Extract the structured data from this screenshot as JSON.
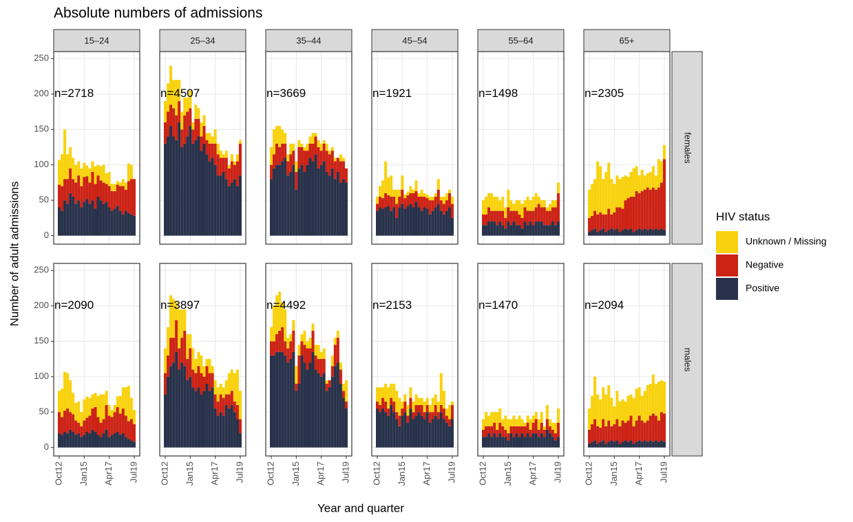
{
  "chart_data": {
    "type": "bar",
    "stacked": true,
    "title": "Absolute numbers of admissions",
    "x_label": "Year and quarter",
    "y_label": "Number of adult admissions",
    "legend_title": "HIV status",
    "series": [
      {
        "name": "Unknown / Missing",
        "color": "#f8d20f"
      },
      {
        "name": "Negative",
        "color": "#cc2316"
      },
      {
        "name": "Positive",
        "color": "#28324a"
      }
    ],
    "facet_cols": [
      "15–24",
      "25–34",
      "35–44",
      "45–54",
      "55–64",
      "65+"
    ],
    "facet_rows": [
      "females",
      "males"
    ],
    "categories": [
      "Oct12",
      null,
      null,
      null,
      null,
      null,
      null,
      null,
      null,
      "Jan15",
      null,
      null,
      null,
      null,
      null,
      null,
      null,
      null,
      "Apr17",
      null,
      null,
      null,
      null,
      null,
      null,
      null,
      null,
      "Jul19"
    ],
    "ylim": [
      -12,
      260
    ],
    "yticks": [
      0,
      50,
      100,
      150,
      200,
      250
    ],
    "grid": true,
    "panels": [
      {
        "annotation": "n=2718",
        "values": [
          [
            35,
            45,
            70,
            35,
            30,
            30,
            25,
            20,
            25,
            20,
            15,
            20,
            15,
            25,
            15,
            20,
            25,
            15,
            20,
            10,
            10,
            5,
            5,
            10,
            10,
            25,
            20,
            0
          ],
          [
            32,
            35,
            30,
            35,
            35,
            25,
            30,
            35,
            30,
            35,
            32,
            30,
            40,
            35,
            30,
            28,
            30,
            25,
            30,
            28,
            25,
            30,
            35,
            40,
            30,
            45,
            50,
            52
          ],
          [
            40,
            35,
            50,
            45,
            60,
            55,
            45,
            50,
            40,
            48,
            52,
            45,
            50,
            38,
            55,
            50,
            45,
            48,
            40,
            35,
            38,
            42,
            35,
            30,
            35,
            32,
            30,
            28
          ]
        ]
      },
      {
        "annotation": "n=4507",
        "values": [
          [
            30,
            40,
            55,
            40,
            50,
            30,
            25,
            25,
            20,
            25,
            10,
            20,
            15,
            20,
            15,
            10,
            15,
            10,
            20,
            15,
            10,
            5,
            10,
            5,
            10,
            5,
            10,
            5
          ],
          [
            30,
            35,
            30,
            40,
            35,
            30,
            25,
            40,
            35,
            25,
            20,
            30,
            25,
            20,
            25,
            20,
            25,
            20,
            30,
            30,
            25,
            20,
            30,
            25,
            30,
            20,
            35,
            45
          ],
          [
            130,
            140,
            155,
            140,
            135,
            160,
            125,
            130,
            140,
            155,
            130,
            135,
            140,
            120,
            130,
            115,
            105,
            110,
            100,
            85,
            85,
            90,
            80,
            70,
            75,
            80,
            70,
            85
          ]
        ]
      },
      {
        "annotation": "n=3669",
        "values": [
          [
            25,
            35,
            25,
            30,
            20,
            15,
            10,
            15,
            10,
            15,
            10,
            5,
            5,
            10,
            10,
            15,
            5,
            10,
            10,
            5,
            10,
            5,
            5,
            5,
            0,
            10,
            5,
            0
          ],
          [
            20,
            20,
            30,
            25,
            25,
            20,
            20,
            25,
            20,
            25,
            30,
            25,
            30,
            20,
            20,
            25,
            25,
            30,
            20,
            25,
            30,
            30,
            25,
            25,
            20,
            30,
            25,
            20
          ],
          [
            80,
            95,
            100,
            100,
            105,
            110,
            85,
            90,
            100,
            65,
            95,
            100,
            90,
            100,
            110,
            105,
            115,
            95,
            100,
            105,
            90,
            85,
            95,
            80,
            90,
            75,
            80,
            75
          ]
        ]
      },
      {
        "annotation": "n=1921",
        "values": [
          [
            10,
            15,
            25,
            45,
            25,
            30,
            10,
            20,
            10,
            20,
            5,
            5,
            10,
            5,
            15,
            5,
            10,
            5,
            5,
            5,
            5,
            5,
            15,
            5,
            10,
            10,
            5,
            10
          ],
          [
            10,
            15,
            15,
            20,
            15,
            20,
            15,
            20,
            15,
            20,
            15,
            15,
            15,
            20,
            15,
            15,
            20,
            15,
            15,
            20,
            15,
            15,
            20,
            15,
            15,
            15,
            20,
            20
          ],
          [
            35,
            40,
            38,
            40,
            42,
            35,
            40,
            25,
            40,
            45,
            38,
            42,
            45,
            40,
            48,
            40,
            35,
            40,
            38,
            30,
            35,
            40,
            45,
            35,
            30,
            35,
            40,
            25
          ]
        ]
      },
      {
        "annotation": "n=1498",
        "values": [
          [
            20,
            25,
            20,
            25,
            20,
            20,
            15,
            20,
            15,
            25,
            15,
            10,
            15,
            20,
            20,
            10,
            20,
            15,
            20,
            20,
            10,
            10,
            10,
            5,
            10,
            10,
            10,
            15
          ],
          [
            15,
            15,
            20,
            15,
            15,
            20,
            15,
            20,
            15,
            20,
            20,
            15,
            20,
            15,
            15,
            20,
            20,
            15,
            20,
            20,
            25,
            20,
            25,
            20,
            20,
            20,
            25,
            40
          ],
          [
            15,
            15,
            20,
            20,
            20,
            15,
            20,
            15,
            10,
            20,
            15,
            20,
            15,
            15,
            10,
            20,
            15,
            20,
            15,
            20,
            20,
            20,
            15,
            15,
            15,
            20,
            15,
            20
          ]
        ]
      },
      {
        "annotation": "n=2305",
        "values": [
          [
            40,
            45,
            45,
            75,
            65,
            50,
            60,
            65,
            50,
            40,
            45,
            40,
            45,
            35,
            30,
            35,
            40,
            35,
            25,
            30,
            20,
            20,
            25,
            30,
            20,
            40,
            30,
            20
          ],
          [
            20,
            20,
            25,
            25,
            25,
            20,
            25,
            30,
            20,
            25,
            30,
            35,
            30,
            40,
            45,
            45,
            50,
            55,
            50,
            55,
            55,
            60,
            55,
            60,
            55,
            60,
            65,
            100
          ],
          [
            5,
            8,
            10,
            5,
            8,
            10,
            5,
            8,
            10,
            8,
            10,
            5,
            8,
            10,
            8,
            10,
            5,
            8,
            10,
            8,
            10,
            8,
            10,
            8,
            10,
            8,
            10,
            8
          ]
        ]
      },
      {
        "annotation": "n=2090",
        "values": [
          [
            30,
            40,
            55,
            50,
            45,
            30,
            25,
            30,
            20,
            30,
            30,
            25,
            20,
            20,
            30,
            40,
            35,
            20,
            15,
            10,
            10,
            15,
            25,
            30,
            40,
            50,
            30,
            20
          ],
          [
            30,
            25,
            30,
            35,
            25,
            25,
            20,
            15,
            15,
            20,
            20,
            25,
            30,
            35,
            25,
            20,
            20,
            35,
            30,
            25,
            30,
            35,
            30,
            35,
            30,
            25,
            30,
            25
          ],
          [
            20,
            18,
            22,
            20,
            25,
            22,
            18,
            20,
            15,
            18,
            22,
            20,
            25,
            22,
            18,
            15,
            20,
            25,
            15,
            18,
            20,
            22,
            18,
            20,
            15,
            12,
            10,
            8
          ]
        ]
      },
      {
        "annotation": "n=3897",
        "values": [
          [
            35,
            40,
            60,
            55,
            25,
            55,
            40,
            30,
            35,
            20,
            30,
            20,
            20,
            25,
            15,
            10,
            20,
            10,
            20,
            20,
            15,
            15,
            20,
            30,
            30,
            40,
            50,
            40
          ],
          [
            30,
            30,
            40,
            35,
            45,
            30,
            35,
            50,
            30,
            40,
            25,
            25,
            30,
            30,
            20,
            25,
            25,
            20,
            20,
            20,
            25,
            25,
            15,
            20,
            20,
            15,
            20,
            20
          ],
          [
            75,
            100,
            115,
            120,
            135,
            110,
            120,
            115,
            95,
            100,
            85,
            80,
            85,
            75,
            80,
            90,
            80,
            85,
            55,
            45,
            50,
            45,
            60,
            55,
            60,
            50,
            40,
            20
          ]
        ]
      },
      {
        "annotation": "n=4492",
        "values": [
          [
            20,
            50,
            55,
            55,
            35,
            45,
            15,
            10,
            15,
            25,
            15,
            10,
            20,
            10,
            15,
            10,
            15,
            20,
            10,
            15,
            5,
            0,
            15,
            10,
            10,
            10,
            10,
            30
          ],
          [
            20,
            20,
            25,
            30,
            35,
            20,
            20,
            25,
            30,
            10,
            40,
            20,
            25,
            30,
            20,
            30,
            20,
            20,
            25,
            20,
            10,
            10,
            15,
            30,
            35,
            20,
            10,
            10
          ],
          [
            130,
            130,
            135,
            135,
            135,
            130,
            120,
            125,
            135,
            80,
            90,
            130,
            120,
            110,
            120,
            135,
            110,
            105,
            100,
            105,
            80,
            85,
            100,
            115,
            120,
            90,
            70,
            55
          ]
        ]
      },
      {
        "annotation": "n=2153",
        "values": [
          [
            20,
            25,
            15,
            25,
            30,
            20,
            25,
            30,
            25,
            10,
            10,
            15,
            15,
            15,
            15,
            10,
            10,
            15,
            10,
            10,
            20,
            15,
            15,
            45,
            25,
            10,
            20,
            5
          ],
          [
            10,
            10,
            15,
            15,
            10,
            10,
            15,
            10,
            15,
            10,
            15,
            10,
            15,
            10,
            15,
            10,
            15,
            10,
            10,
            15,
            10,
            15,
            10,
            10,
            15,
            10,
            10,
            20
          ],
          [
            55,
            50,
            55,
            50,
            45,
            60,
            50,
            40,
            30,
            45,
            50,
            35,
            55,
            40,
            45,
            50,
            45,
            40,
            50,
            35,
            40,
            45,
            40,
            50,
            40,
            35,
            30,
            40
          ]
        ]
      },
      {
        "annotation": "n=1470",
        "values": [
          [
            15,
            20,
            15,
            20,
            15,
            25,
            20,
            10,
            20,
            20,
            10,
            15,
            10,
            15,
            10,
            5,
            10,
            15,
            10,
            10,
            15,
            15,
            5,
            20,
            10,
            10,
            15,
            20
          ],
          [
            10,
            15,
            10,
            15,
            15,
            10,
            15,
            15,
            10,
            10,
            10,
            15,
            10,
            15,
            10,
            15,
            15,
            10,
            15,
            20,
            10,
            15,
            10,
            15,
            10,
            10,
            10,
            20
          ],
          [
            15,
            15,
            20,
            15,
            20,
            15,
            20,
            15,
            15,
            10,
            20,
            15,
            20,
            15,
            20,
            15,
            20,
            15,
            20,
            20,
            15,
            20,
            15,
            25,
            20,
            15,
            10,
            15
          ]
        ]
      },
      {
        "annotation": "n=2094",
        "values": [
          [
            30,
            40,
            60,
            45,
            40,
            45,
            45,
            50,
            40,
            25,
            40,
            35,
            30,
            30,
            35,
            30,
            40,
            45,
            40,
            35,
            45,
            50,
            45,
            55,
            45,
            55,
            45,
            45
          ],
          [
            20,
            25,
            30,
            25,
            20,
            30,
            25,
            30,
            20,
            25,
            30,
            25,
            30,
            25,
            30,
            35,
            25,
            30,
            35,
            30,
            25,
            30,
            35,
            40,
            35,
            30,
            40,
            40
          ],
          [
            5,
            8,
            10,
            5,
            8,
            10,
            5,
            8,
            10,
            8,
            10,
            5,
            8,
            10,
            8,
            10,
            5,
            8,
            10,
            8,
            10,
            8,
            10,
            8,
            10,
            8,
            10,
            8
          ]
        ]
      }
    ]
  }
}
